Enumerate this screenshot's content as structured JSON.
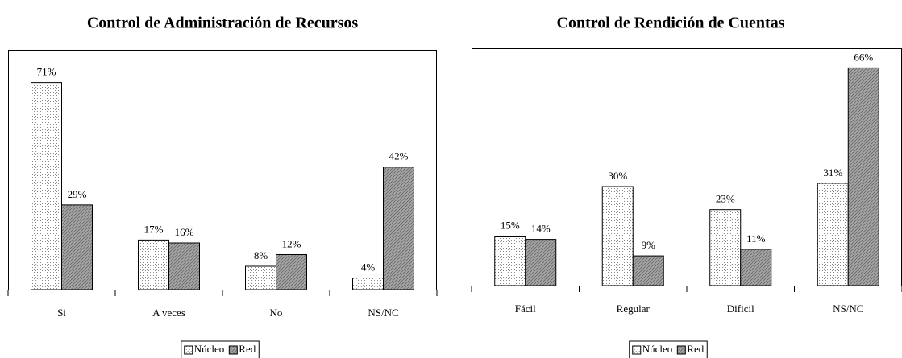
{
  "chart_data": [
    {
      "type": "bar",
      "title": "Control de Administración de Recursos",
      "categories": [
        "Si",
        "A veces",
        "No",
        "NS/NC"
      ],
      "series": [
        {
          "name": "Núcleo",
          "color": "#ffffff",
          "values": [
            71,
            17,
            8,
            4
          ],
          "value_labels": [
            "71%",
            "17%",
            "8%",
            "4%"
          ]
        },
        {
          "name": "Red",
          "color": "#a6a6a6",
          "values": [
            29,
            16,
            12,
            42
          ],
          "value_labels": [
            "29%",
            "16%",
            "12%",
            "42%"
          ]
        }
      ],
      "ylim": [
        0,
        80
      ],
      "legend": "bottom"
    },
    {
      "type": "bar",
      "title": "Control de Rendición de Cuentas",
      "categories": [
        "Fácil",
        "Regular",
        "Dificil",
        "NS/NC"
      ],
      "series": [
        {
          "name": "Núcleo",
          "color": "#ffffff",
          "values": [
            15,
            30,
            23,
            31
          ],
          "value_labels": [
            "15%",
            "30%",
            "23%",
            "31%"
          ]
        },
        {
          "name": "Red",
          "color": "#a6a6a6",
          "values": [
            14,
            9,
            11,
            66
          ],
          "value_labels": [
            "14%",
            "9%",
            "11%",
            "66%"
          ]
        }
      ],
      "ylim": [
        0,
        70
      ],
      "legend": "bottom"
    }
  ]
}
